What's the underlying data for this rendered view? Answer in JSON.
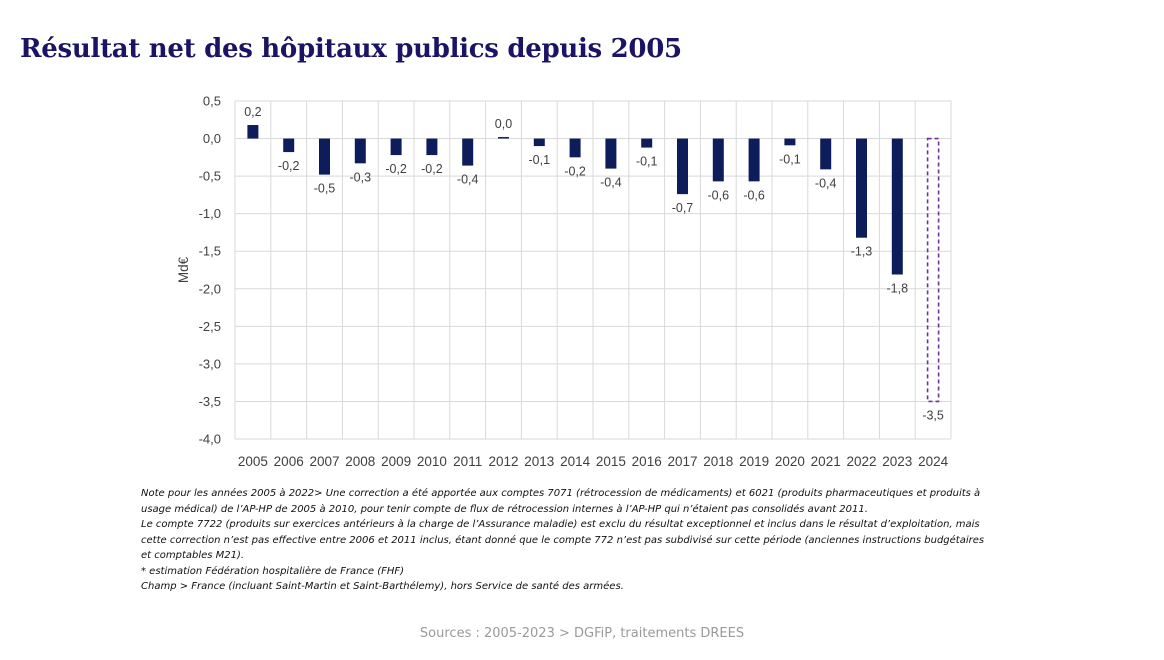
{
  "page": {
    "title": "Résultat net des hôpitaux publics depuis 2005",
    "notes": [
      "Note pour les années 2005 à 2022> Une correction a été apportée aux comptes 7071 (rétrocession de médicaments) et 6021 (produits pharmaceutiques et produits à usage médical) de l’AP-HP de 2005 à 2010, pour tenir compte de flux de rétrocession internes à l’AP-HP qui n’étaient pas consolidés avant 2011.",
      "Le compte 7722 (produits sur exercices antérieurs à la charge de l’Assurance maladie) est exclu du résultat exceptionnel et inclus dans le résultat d’exploitation, mais cette correction n’est pas effective entre 2006 et 2011 inclus, étant donné que le compte 772 n’est pas subdivisé sur cette période (anciennes instructions budgétaires et comptables M21).",
      "* estimation Fédération hospitalière de France (FHF)",
      "Champ > France (incluant Saint-Martin et Saint-Barthélemy), hors Service de santé des armées."
    ],
    "sources": "Sources : 2005-2023 > DGFiP, traitements DREES"
  },
  "colors": {
    "bar": "#0d1d5b",
    "estimate": "#7030a0",
    "grid": "#d9d9d9",
    "title": "#1b1464"
  },
  "chart_data": {
    "type": "bar",
    "title": "",
    "xlabel": "",
    "ylabel": "Md€",
    "ylim": [
      -4.0,
      0.5
    ],
    "yticks": [
      0.5,
      0.0,
      -0.5,
      -1.0,
      -1.5,
      -2.0,
      -2.5,
      -3.0,
      -3.5,
      -4.0
    ],
    "ytick_labels": [
      "0,5",
      "0,0",
      "-0,5",
      "-1,0",
      "-1,5",
      "-2,0",
      "-2,5",
      "-3,0",
      "-3,5",
      "-4,0"
    ],
    "grid": true,
    "categories": [
      "2005",
      "2006",
      "2007",
      "2008",
      "2009",
      "2010",
      "2011",
      "2012",
      "2013",
      "2014",
      "2015",
      "2016",
      "2017",
      "2018",
      "2019",
      "2020",
      "2021",
      "2022",
      "2023",
      "2024"
    ],
    "values": [
      0.18,
      -0.18,
      -0.48,
      -0.33,
      -0.22,
      -0.22,
      -0.36,
      0.02,
      -0.1,
      -0.25,
      -0.4,
      -0.12,
      -0.74,
      -0.57,
      -0.57,
      -0.09,
      -0.41,
      -1.32,
      -1.81,
      -3.5
    ],
    "data_labels": [
      "0,2",
      "-0,2",
      "-0,5",
      "-0,3",
      "-0,2",
      "-0,2",
      "-0,4",
      "0,0",
      "-0,1",
      "-0,2",
      "-0,4",
      "-0,1",
      "-0,7",
      "-0,6",
      "-0,6",
      "-0,1",
      "-0,4",
      "-1,3",
      "-1,8",
      "-3,5"
    ],
    "estimated": [
      false,
      false,
      false,
      false,
      false,
      false,
      false,
      false,
      false,
      false,
      false,
      false,
      false,
      false,
      false,
      false,
      false,
      false,
      false,
      true
    ]
  }
}
